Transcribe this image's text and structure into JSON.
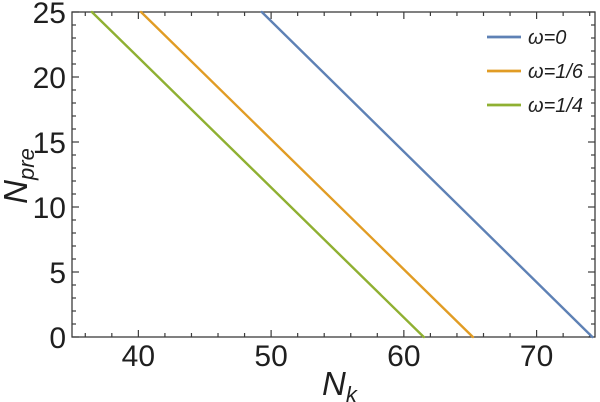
{
  "chart_data": {
    "type": "line",
    "title": "",
    "xlabel": {
      "main": "N",
      "sub": "k"
    },
    "ylabel": {
      "main": "N",
      "sub": "pre"
    },
    "xlim": [
      35,
      74.4
    ],
    "ylim": [
      0,
      25
    ],
    "xticks": [
      40,
      50,
      60,
      70
    ],
    "yticks": [
      0,
      5,
      10,
      15,
      20,
      25
    ],
    "x_minor_step": 2,
    "y_minor_step": 1,
    "grid": false,
    "frame": true,
    "legend_position": "top-right",
    "series": [
      {
        "name": "ω=0",
        "color": "#5E81B5",
        "points": [
          [
            49.3,
            25
          ],
          [
            74.2,
            0
          ]
        ]
      },
      {
        "name": "ω=1/6",
        "color": "#E19C24",
        "points": [
          [
            40.2,
            25
          ],
          [
            65.2,
            0
          ]
        ]
      },
      {
        "name": "ω=1/4",
        "color": "#8FB032",
        "points": [
          [
            36.5,
            25
          ],
          [
            61.5,
            0
          ]
        ]
      }
    ]
  },
  "colors": {
    "frame": "#3c3c3c",
    "text": "#1f1f1f",
    "background": "#ffffff"
  }
}
